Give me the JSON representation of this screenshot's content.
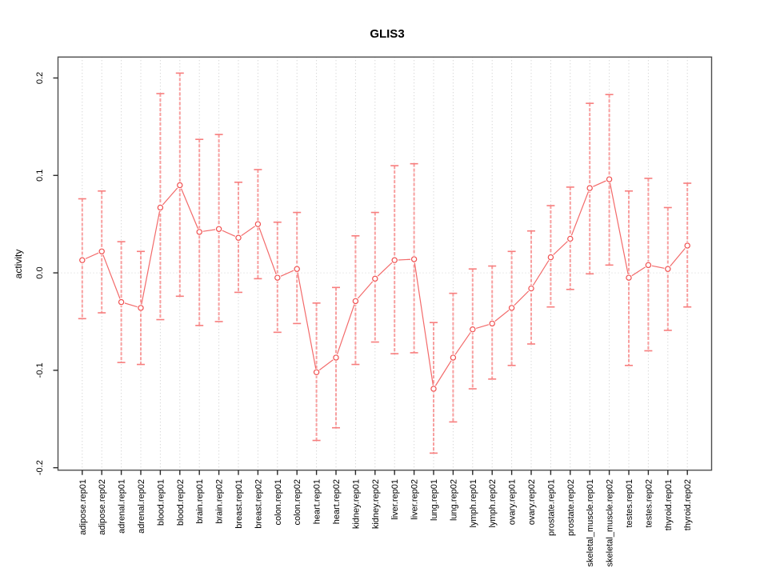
{
  "figure": {
    "title": "GLIS3",
    "background": "#ffffff"
  },
  "style": {
    "point_color": "#f04f4f",
    "line_color": "#f36a6a",
    "errorbar_color": "#f89e9e",
    "errorbar_cap_color": "#f77d7d",
    "grid_color": "#c9c9c9",
    "zero_line_color": "#d4d4d4",
    "axis_color": "#4d4d4d",
    "tick_color": "#2b2b2b",
    "text_color": "#000000"
  },
  "chart_data": {
    "type": "line",
    "title": "GLIS3",
    "xlabel": "",
    "ylabel": "activity",
    "ylim": [
      -0.2025,
      0.2215
    ],
    "yticks": {
      "values": [
        -0.2,
        -0.1,
        0.0,
        0.1,
        0.2
      ],
      "labels": [
        "-0.2",
        "-0.1",
        "0.0",
        "0.1",
        "0.2"
      ]
    },
    "grid": {
      "vertical": "dotted gray line at every category",
      "horizontal": "dotted gray line at y=0 only"
    },
    "legend": "none",
    "point_marker": "open-circle",
    "categories": [
      "adipose.rep01",
      "adipose.rep02",
      "adrenal.rep01",
      "adrenal.rep02",
      "blood.rep01",
      "blood.rep02",
      "brain.rep01",
      "brain.rep02",
      "breast.rep01",
      "breast.rep02",
      "colon.rep01",
      "colon.rep02",
      "heart.rep01",
      "heart.rep02",
      "kidney.rep01",
      "kidney.rep02",
      "liver.rep01",
      "liver.rep02",
      "lung.rep01",
      "lung.rep02",
      "lymph.rep01",
      "lymph.rep02",
      "ovary.rep01",
      "ovary.rep02",
      "prostate.rep01",
      "prostate.rep02",
      "skeletal_muscle.rep01",
      "skeletal_muscle.rep02",
      "testes.rep01",
      "testes.rep02",
      "thyroid.rep01",
      "thyroid.rep02"
    ],
    "series": [
      {
        "name": "activity",
        "values": [
          0.013,
          0.022,
          -0.03,
          -0.036,
          0.067,
          0.09,
          0.042,
          0.045,
          0.036,
          0.05,
          -0.005,
          0.004,
          -0.102,
          -0.087,
          -0.029,
          -0.006,
          0.013,
          0.014,
          -0.119,
          -0.087,
          -0.058,
          -0.052,
          -0.036,
          -0.016,
          0.016,
          0.035,
          0.087,
          0.096,
          -0.005,
          0.008,
          0.004,
          0.028
        ],
        "error_low": [
          -0.047,
          -0.041,
          -0.092,
          -0.094,
          -0.048,
          -0.024,
          -0.054,
          -0.05,
          -0.02,
          -0.006,
          -0.061,
          -0.052,
          -0.172,
          -0.159,
          -0.094,
          -0.071,
          -0.083,
          -0.082,
          -0.185,
          -0.153,
          -0.119,
          -0.109,
          -0.095,
          -0.073,
          -0.035,
          -0.017,
          -0.001,
          0.008,
          -0.095,
          -0.08,
          -0.059,
          -0.035
        ],
        "error_high": [
          0.076,
          0.084,
          0.032,
          0.022,
          0.184,
          0.205,
          0.137,
          0.142,
          0.093,
          0.106,
          0.052,
          0.062,
          -0.031,
          -0.015,
          0.038,
          0.062,
          0.11,
          0.112,
          -0.051,
          -0.021,
          0.004,
          0.007,
          0.022,
          0.043,
          0.069,
          0.088,
          0.174,
          0.183,
          0.084,
          0.097,
          0.067,
          0.092
        ]
      }
    ]
  }
}
